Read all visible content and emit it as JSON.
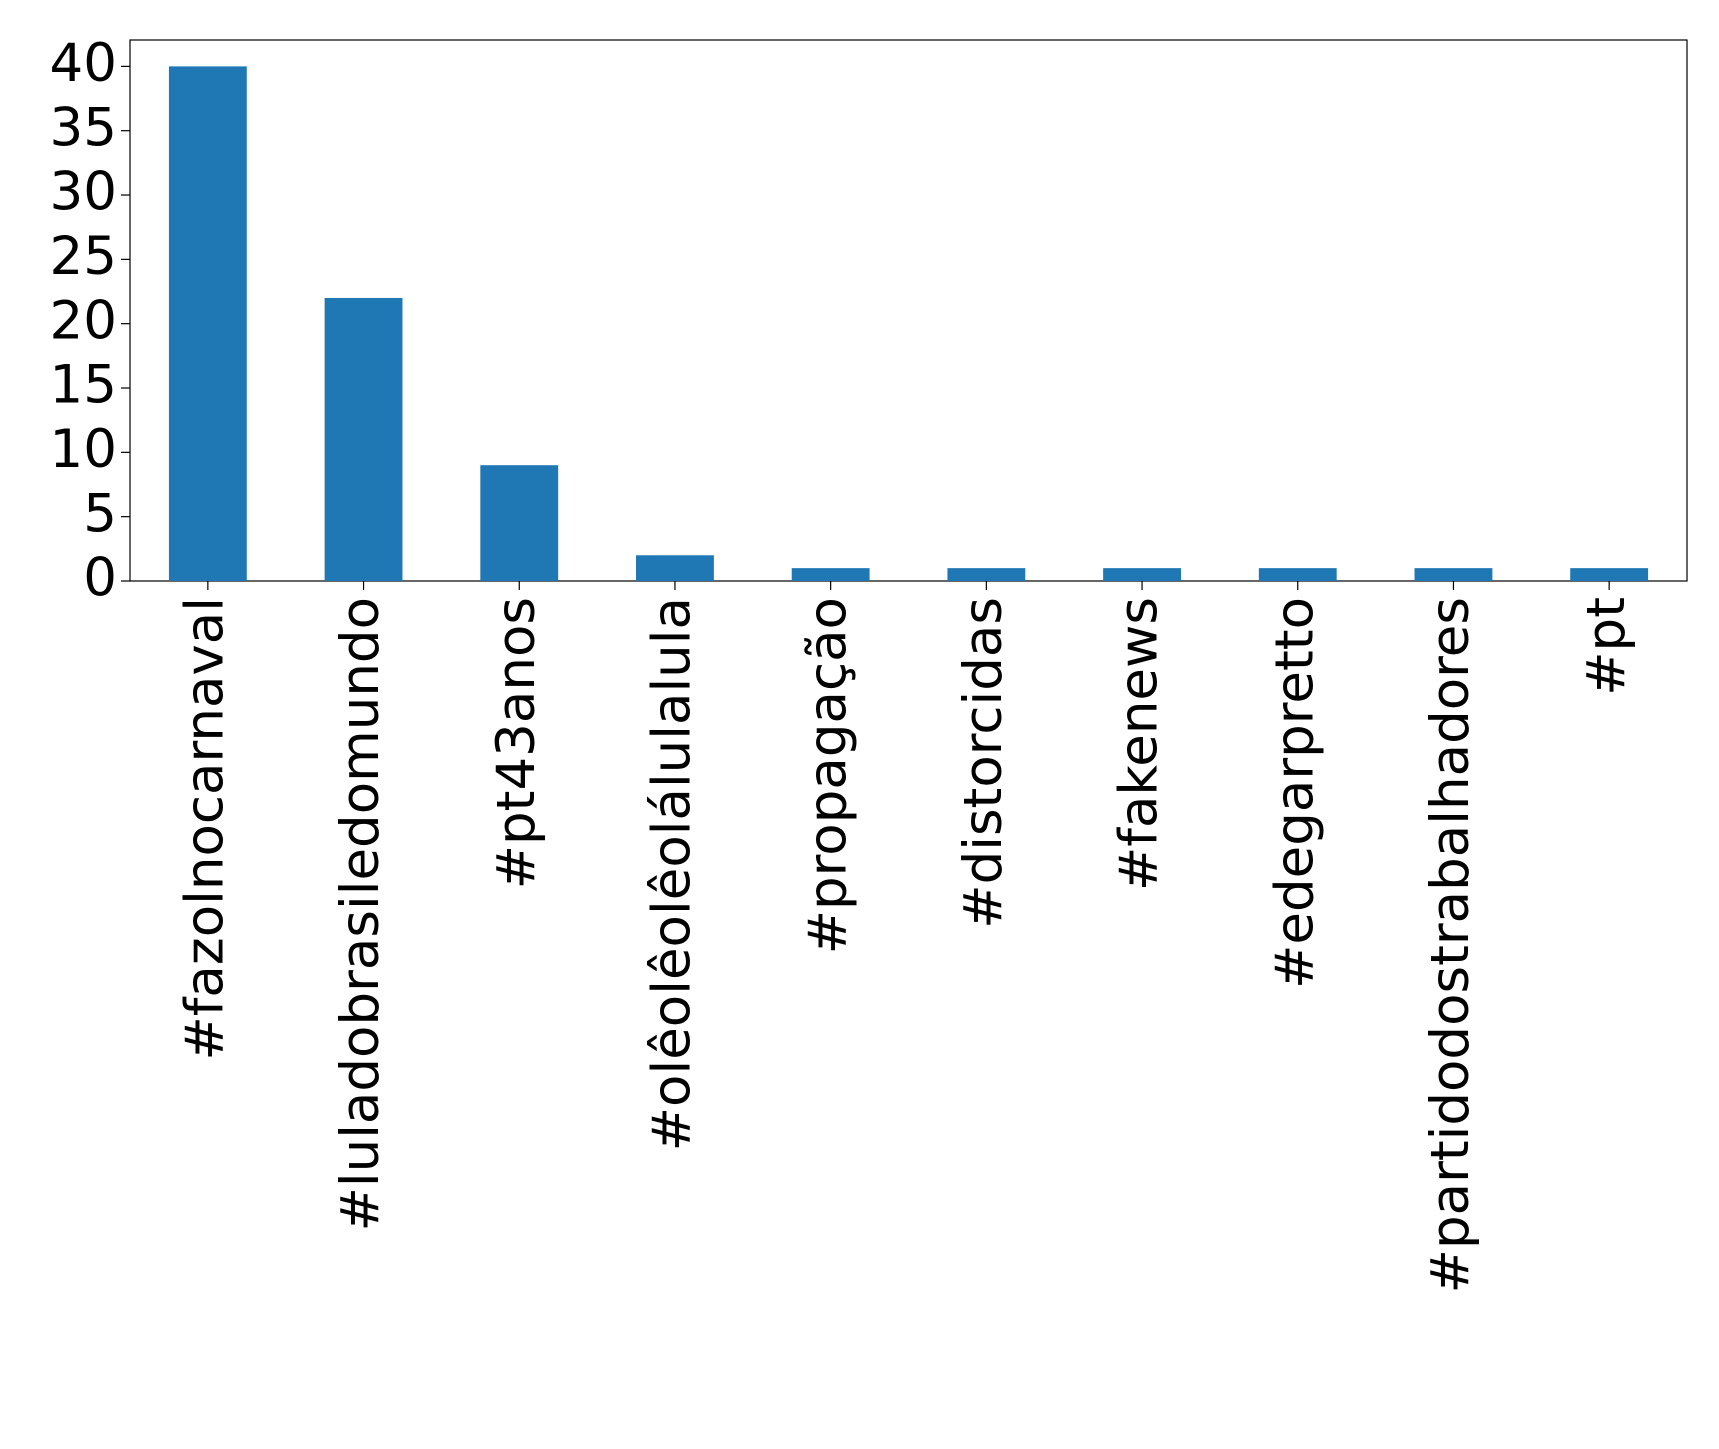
{
  "chart_data": {
    "type": "bar",
    "categories": [
      "#fazolnocarnaval",
      "#luladobrasiledomundo",
      "#pt43anos",
      "#olêolêolêolálulalula",
      "#propagação",
      "#distorcidas",
      "#fakenews",
      "#edegarpretto",
      "#partidodostrabalhadores",
      "#pt"
    ],
    "values": [
      40,
      22,
      9,
      2,
      1,
      1,
      1,
      1,
      1,
      1
    ],
    "color": "#1f77b4",
    "ylim": [
      0,
      42.05
    ],
    "yticks": [
      0,
      5,
      10,
      15,
      20,
      25,
      30,
      35,
      40
    ]
  }
}
